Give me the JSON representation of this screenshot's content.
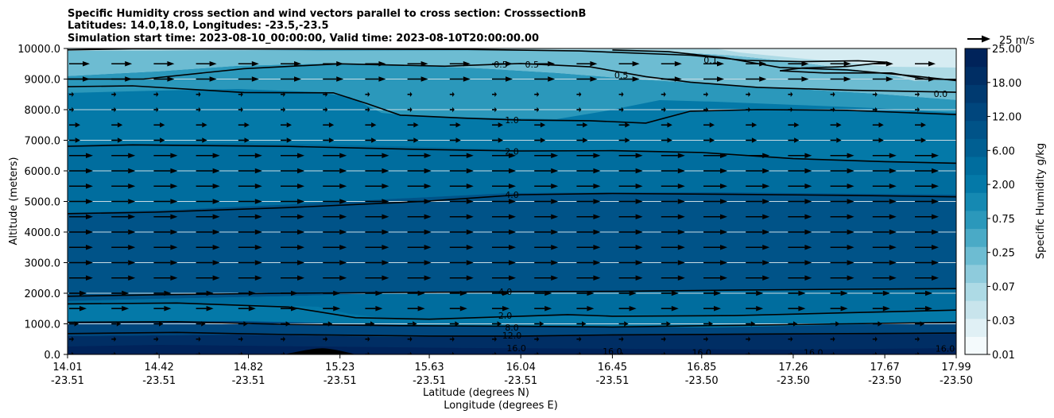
{
  "chart_data": {
    "type": "contour",
    "title_lines": [
      "Specific Humidity cross section and wind vectors parallel to cross section: CrosssectionB",
      "Latitudes: 14.0,18.0, Longitudes: -23.5,-23.5",
      "Simulation start time: 2023-08-10_00:00:00, Valid time: 2023-08-10T20:00:00.00"
    ],
    "ylabel": "Altitude (meters)",
    "xlabel_lat": "Latitude (degrees N)",
    "xlabel_lon": "Longitude (degrees E)",
    "ylim": [
      0,
      10000
    ],
    "y_ticks": [
      "0.0",
      "1000.0",
      "2000.0",
      "3000.0",
      "4000.0",
      "5000.0",
      "6000.0",
      "7000.0",
      "8000.0",
      "9000.0",
      "10000.0"
    ],
    "x_ticks": [
      {
        "lat": "14.01",
        "lon": "-23.51"
      },
      {
        "lat": "14.42",
        "lon": "-23.51"
      },
      {
        "lat": "14.82",
        "lon": "-23.51"
      },
      {
        "lat": "15.23",
        "lon": "-23.51"
      },
      {
        "lat": "15.63",
        "lon": "-23.51"
      },
      {
        "lat": "16.04",
        "lon": "-23.51"
      },
      {
        "lat": "16.45",
        "lon": "-23.51"
      },
      {
        "lat": "16.85",
        "lon": "-23.50"
      },
      {
        "lat": "17.26",
        "lon": "-23.50"
      },
      {
        "lat": "17.67",
        "lon": "-23.50"
      },
      {
        "lat": "17.99",
        "lon": "-23.50"
      }
    ],
    "colorbar": {
      "label": "Specific Humidity g/kg",
      "tick_labels": [
        "0.01",
        "0.03",
        "0.07",
        "0.25",
        "0.75",
        "2.00",
        "6.00",
        "12.00",
        "18.00",
        "25.00"
      ],
      "colors": [
        "#f4fafc",
        "#e0f0f5",
        "#c8e4ec",
        "#addae5",
        "#8ecbdc",
        "#6dbcd2",
        "#4aaac6",
        "#2b98bb",
        "#1589b2",
        "#0479a8",
        "#006d9e",
        "#005f92",
        "#005388",
        "#00467d",
        "#003a70",
        "#002e64",
        "#00235a"
      ]
    },
    "quiver_key": {
      "label": "25 m/s",
      "speed": 25
    },
    "contour_lines": [
      {
        "level": "0.1",
        "points": [
          [
            14.0,
            9950
          ],
          [
            14.3,
            9990
          ],
          [
            15.0,
            9980
          ],
          [
            15.8,
            9970
          ],
          [
            16.3,
            9920
          ],
          [
            16.8,
            9780
          ],
          [
            17.05,
            9610
          ],
          [
            17.3,
            9570
          ],
          [
            17.55,
            9600
          ],
          [
            17.68,
            9550
          ],
          [
            17.5,
            9410
          ],
          [
            17.3,
            9360
          ],
          [
            17.2,
            9270
          ],
          [
            17.4,
            9200
          ],
          [
            17.7,
            9200
          ],
          [
            17.85,
            9000
          ],
          [
            17.99,
            8990
          ]
        ]
      },
      {
        "level": "0.1",
        "points": [
          [
            16.45,
            9950
          ],
          [
            16.7,
            9900
          ],
          [
            16.95,
            9700
          ],
          [
            17.2,
            9380
          ],
          [
            17.5,
            9300
          ],
          [
            17.8,
            9100
          ],
          [
            17.99,
            8950
          ]
        ]
      },
      {
        "level": "0.5",
        "points": [
          [
            14.0,
            9000
          ],
          [
            14.35,
            9000
          ],
          [
            14.8,
            9340
          ],
          [
            15.23,
            9500
          ],
          [
            15.7,
            9420
          ],
          [
            16.04,
            9510
          ],
          [
            16.35,
            9400
          ],
          [
            16.6,
            9080
          ],
          [
            16.8,
            8900
          ],
          [
            17.1,
            8730
          ],
          [
            17.5,
            8640
          ],
          [
            17.99,
            8570
          ]
        ]
      },
      {
        "level": "1.0",
        "points": [
          [
            14.0,
            8750
          ],
          [
            14.3,
            8780
          ],
          [
            14.8,
            8560
          ],
          [
            15.2,
            8550
          ],
          [
            15.35,
            8200
          ],
          [
            15.5,
            7820
          ],
          [
            15.8,
            7720
          ],
          [
            16.04,
            7660
          ],
          [
            16.35,
            7640
          ],
          [
            16.6,
            7560
          ],
          [
            16.8,
            7950
          ],
          [
            17.1,
            8000
          ],
          [
            17.5,
            7980
          ],
          [
            17.99,
            7840
          ]
        ]
      },
      {
        "level": "2.0",
        "points": [
          [
            14.0,
            6800
          ],
          [
            14.3,
            6850
          ],
          [
            15.0,
            6800
          ],
          [
            15.6,
            6700
          ],
          [
            16.04,
            6650
          ],
          [
            16.45,
            6660
          ],
          [
            16.85,
            6600
          ],
          [
            17.26,
            6400
          ],
          [
            17.67,
            6300
          ],
          [
            17.99,
            6250
          ]
        ]
      },
      {
        "level": "4.0",
        "points": [
          [
            14.0,
            4600
          ],
          [
            14.4,
            4650
          ],
          [
            15.0,
            4800
          ],
          [
            15.6,
            5000
          ],
          [
            16.04,
            5220
          ],
          [
            16.45,
            5260
          ],
          [
            17.0,
            5230
          ],
          [
            17.5,
            5200
          ],
          [
            17.99,
            5150
          ]
        ]
      },
      {
        "level": "4.0",
        "points": [
          [
            14.0,
            1900
          ],
          [
            14.4,
            1950
          ],
          [
            15.0,
            2000
          ],
          [
            15.6,
            2030
          ],
          [
            16.04,
            2050
          ],
          [
            16.45,
            2060
          ],
          [
            17.0,
            2100
          ],
          [
            17.5,
            2130
          ],
          [
            17.99,
            2150
          ]
        ]
      },
      {
        "level": "2.0",
        "points": [
          [
            14.0,
            1650
          ],
          [
            14.5,
            1680
          ],
          [
            15.0,
            1550
          ],
          [
            15.3,
            1200
          ],
          [
            15.63,
            1150
          ],
          [
            16.04,
            1250
          ],
          [
            16.25,
            1300
          ],
          [
            16.45,
            1250
          ],
          [
            17.0,
            1270
          ],
          [
            17.5,
            1360
          ],
          [
            17.99,
            1450
          ]
        ]
      },
      {
        "level": "8.0",
        "points": [
          [
            14.0,
            1050
          ],
          [
            14.5,
            1070
          ],
          [
            15.0,
            980
          ],
          [
            15.5,
            940
          ],
          [
            16.04,
            920
          ],
          [
            16.45,
            900
          ],
          [
            17.0,
            950
          ],
          [
            17.5,
            1000
          ],
          [
            17.99,
            1050
          ]
        ]
      },
      {
        "level": "12.0",
        "points": [
          [
            14.0,
            680
          ],
          [
            14.5,
            720
          ],
          [
            15.0,
            650
          ],
          [
            15.63,
            600
          ],
          [
            16.04,
            600
          ],
          [
            16.45,
            640
          ],
          [
            17.0,
            660
          ],
          [
            17.5,
            680
          ],
          [
            17.99,
            700
          ]
        ]
      }
    ],
    "contour_labels": [
      {
        "text": "0.5",
        "lat": 15.95,
        "alt": 9480
      },
      {
        "text": "0.5",
        "lat": 16.09,
        "alt": 9480
      },
      {
        "text": "0.5",
        "lat": 16.49,
        "alt": 9130
      },
      {
        "text": "0.1",
        "lat": 16.89,
        "alt": 9620
      },
      {
        "text": "0.0",
        "lat": 17.92,
        "alt": 8520
      },
      {
        "text": "1.0",
        "lat": 16.0,
        "alt": 7660
      },
      {
        "text": "2.0",
        "lat": 16.0,
        "alt": 6640
      },
      {
        "text": "4.0",
        "lat": 16.0,
        "alt": 5220
      },
      {
        "text": "4.0",
        "lat": 15.97,
        "alt": 2050
      },
      {
        "text": "2.0",
        "lat": 15.97,
        "alt": 1270
      },
      {
        "text": "8.0",
        "lat": 16.0,
        "alt": 880
      },
      {
        "text": "12.0",
        "lat": 16.0,
        "alt": 620
      },
      {
        "text": "16.0",
        "lat": 16.02,
        "alt": 210
      },
      {
        "text": "16.0",
        "lat": 16.45,
        "alt": 100
      },
      {
        "text": "16.0",
        "lat": 16.85,
        "alt": 60
      },
      {
        "text": "16.0",
        "lat": 17.35,
        "alt": 60
      },
      {
        "text": "16.0",
        "lat": 17.94,
        "alt": 200
      }
    ],
    "terrain": {
      "lat_start": 14.98,
      "lat_end": 15.3,
      "peak_lat": 15.15,
      "peak_alt": 200
    }
  }
}
